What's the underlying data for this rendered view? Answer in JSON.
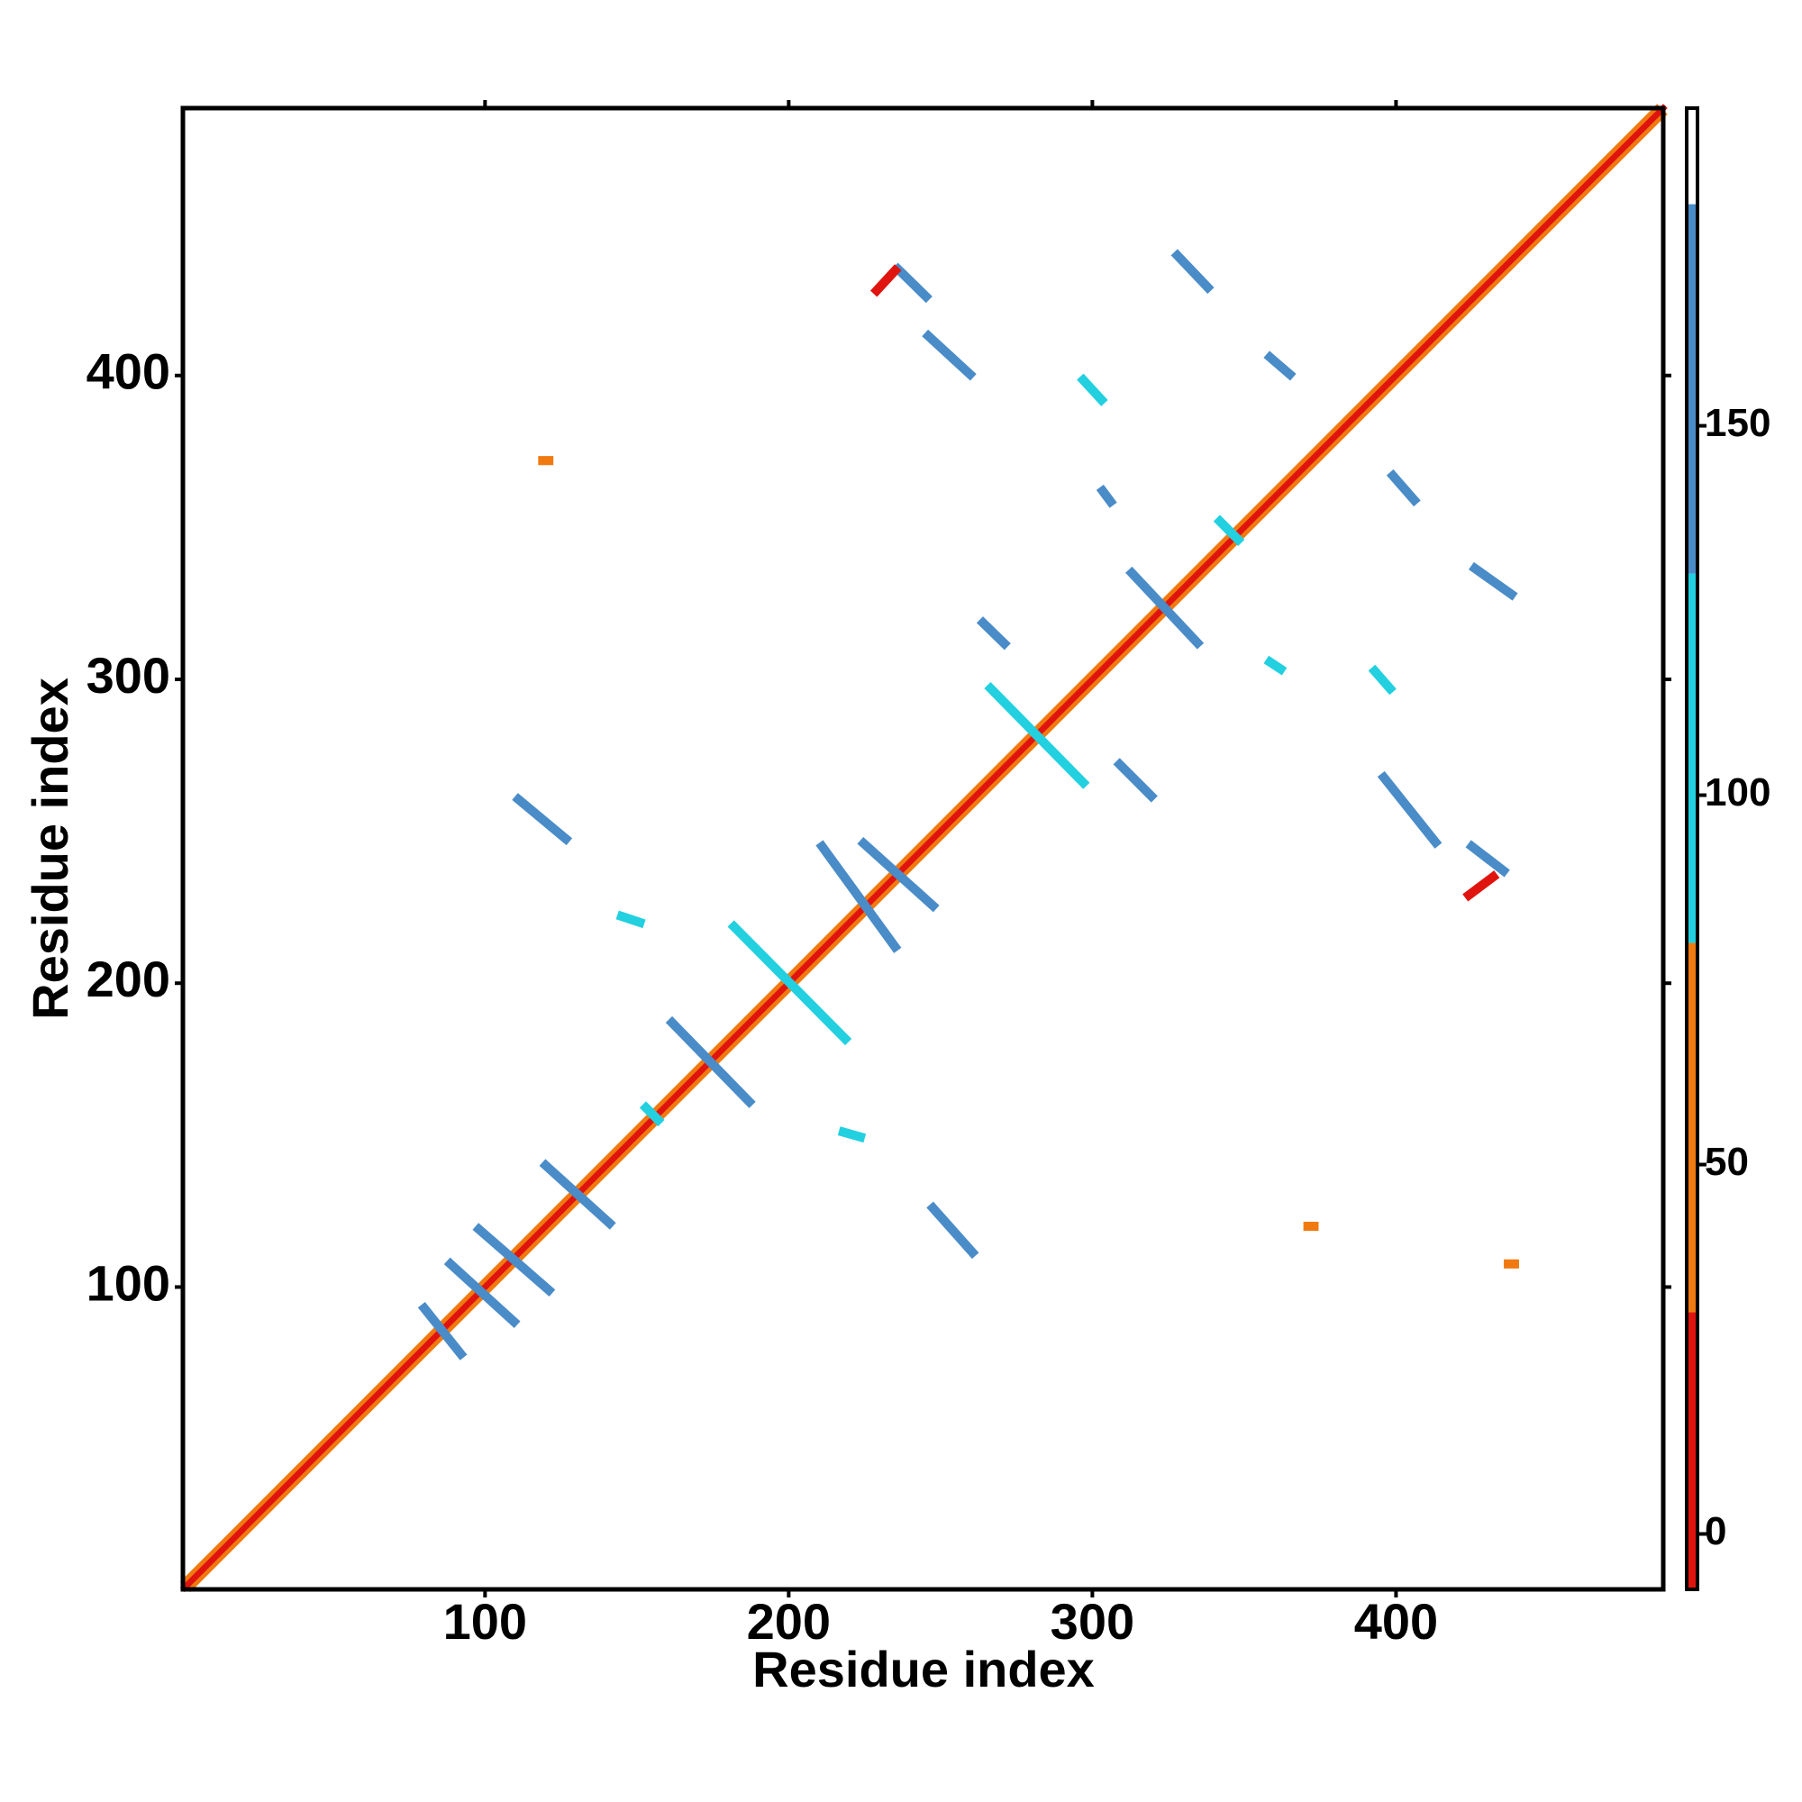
{
  "chart_data": {
    "type": "contact-map",
    "xlabel": "Residue index",
    "ylabel": "Residue index",
    "xlim": [
      0.5,
      488
    ],
    "ylim": [
      0.5,
      488
    ],
    "xticks": [
      100,
      200,
      300,
      400
    ],
    "yticks": [
      100,
      200,
      300,
      400
    ],
    "colorbar": {
      "lim": [
        -7.5,
        193
      ],
      "ticks": [
        0,
        50,
        100,
        150
      ],
      "bands": [
        {
          "range": [
            -7.5,
            30
          ],
          "color": "#e0140f"
        },
        {
          "range": [
            30,
            80
          ],
          "color": "#f07a10"
        },
        {
          "range": [
            80,
            130
          ],
          "color": "#22d0e0"
        },
        {
          "range": [
            130,
            180
          ],
          "color": "#4a8cc8"
        },
        {
          "range": [
            180,
            193
          ],
          "color": "#ffffff"
        }
      ]
    },
    "segments": [
      {
        "x": [
          3,
          488
        ],
        "y": [
          1,
          486
        ],
        "value": 45
      },
      {
        "x": [
          1,
          486
        ],
        "y": [
          3,
          488
        ],
        "value": 45
      },
      {
        "x": [
          1,
          488
        ],
        "y": [
          1,
          488
        ],
        "value": 5
      },
      {
        "x": [
          80,
          92
        ],
        "y": [
          93,
          78
        ],
        "value": 140
      },
      {
        "x": [
          88.6,
          109.5
        ],
        "y": [
          107.6,
          88.6
        ],
        "value": 140
      },
      {
        "x": [
          98,
          121
        ],
        "y": [
          119,
          99
        ],
        "value": 140
      },
      {
        "x": [
          120,
          141
        ],
        "y": [
          140,
          121
        ],
        "value": 140
      },
      {
        "x": [
          153,
          157
        ],
        "y": [
          159,
          155
        ],
        "value": 110
      },
      {
        "x": [
          161.6,
          187
        ],
        "y": [
          187,
          161
        ],
        "value": 140
      },
      {
        "x": [
          182,
          218.6
        ],
        "y": [
          218.6,
          181.7
        ],
        "value": 120
      },
      {
        "x": [
          211,
          235
        ],
        "y": [
          245,
          212
        ],
        "value": 140
      },
      {
        "x": [
          224.7,
          247.5
        ],
        "y": [
          246,
          225.5
        ],
        "value": 140
      },
      {
        "x": [
          266.5,
          297
        ],
        "y": [
          297,
          266
        ],
        "value": 110
      },
      {
        "x": [
          313,
          334.6
        ],
        "y": [
          335,
          312
        ],
        "value": 140
      },
      {
        "x": [
          342,
          348
        ],
        "y": [
          352,
          346
        ],
        "value": 110
      },
      {
        "x": [
          111,
          126.6
        ],
        "y": [
          260.5,
          247.5
        ],
        "value": 140
      },
      {
        "x": [
          247.5,
          260.5
        ],
        "y": [
          126,
          111.4
        ],
        "value": 140
      },
      {
        "x": [
          236,
          245.2
        ],
        "y": [
          435,
          426
        ],
        "value": 140
      },
      {
        "x": [
          246,
          259.7
        ],
        "y": [
          413,
          400.4
        ],
        "value": 140
      },
      {
        "x": [
          328,
          338
        ],
        "y": [
          439.5,
          429
        ],
        "value": 140
      },
      {
        "x": [
          358.5,
          365
        ],
        "y": [
          406,
          400.4
        ],
        "value": 140
      },
      {
        "x": [
          426,
          438
        ],
        "y": [
          336.5,
          328
        ],
        "value": 140
      },
      {
        "x": [
          396,
          413
        ],
        "y": [
          267.7,
          246.4
        ],
        "value": 140
      },
      {
        "x": [
          425,
          435.4
        ],
        "y": [
          245,
          237
        ],
        "value": 140
      },
      {
        "x": [
          309,
          319.4
        ],
        "y": [
          272,
          261.6
        ],
        "value": 140
      },
      {
        "x": [
          264,
          271
        ],
        "y": [
          318.6,
          311.8
        ],
        "value": 140
      },
      {
        "x": [
          297,
          303
        ],
        "y": [
          398.5,
          392
        ],
        "value": 110
      },
      {
        "x": [
          303.4,
          306
        ],
        "y": [
          362,
          358.5
        ],
        "value": 140
      },
      {
        "x": [
          399,
          406
        ],
        "y": [
          367,
          359
        ],
        "value": 140
      },
      {
        "x": [
          358.5,
          362
        ],
        "y": [
          305.7,
          303.4
        ],
        "value": 110
      },
      {
        "x": [
          393,
          398
        ],
        "y": [
          302.7,
          297
        ],
        "value": 110
      },
      {
        "x": [
          145,
          151
        ],
        "y": [
          222,
          220
        ],
        "value": 110
      },
      {
        "x": [
          218,
          223.6
        ],
        "y": [
          151,
          149.4
        ],
        "value": 110
      },
      {
        "x": [
          119,
          121
        ],
        "y": [
          372,
          372
        ],
        "value": 50
      },
      {
        "x": [
          371,
          373
        ],
        "y": [
          120,
          120
        ],
        "value": 50
      },
      {
        "x": [
          437,
          439
        ],
        "y": [
          107.6,
          107.6
        ],
        "value": 50
      },
      {
        "x": [
          424,
          432
        ],
        "y": [
          229,
          235
        ],
        "value": 10
      },
      {
        "x": [
          229,
          235
        ],
        "y": [
          428,
          434.5
        ],
        "value": 10
      }
    ]
  }
}
